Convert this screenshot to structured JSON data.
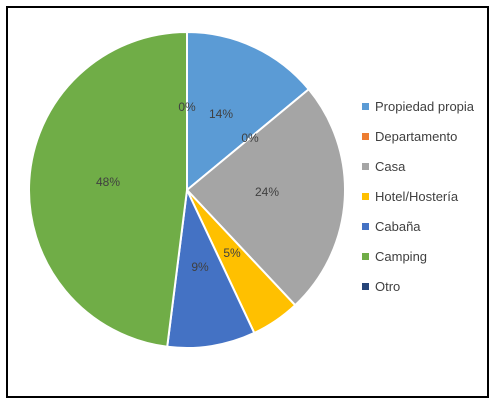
{
  "chart_data": {
    "type": "pie",
    "title": "",
    "legend_position": "right",
    "start_angle_deg": 0,
    "direction": "clockwise",
    "slices": [
      {
        "label": "Propiedad propia",
        "value": 14,
        "display": "14%",
        "color": "#5B9BD5"
      },
      {
        "label": "Departamento",
        "value": 0,
        "display": "0%",
        "color": "#ED7D31"
      },
      {
        "label": "Casa",
        "value": 24,
        "display": "24%",
        "color": "#A5A5A5"
      },
      {
        "label": "Hotel/Hostería",
        "value": 5,
        "display": "5%",
        "color": "#FFC000"
      },
      {
        "label": "Cabaña",
        "value": 9,
        "display": "9%",
        "color": "#4472C4"
      },
      {
        "label": "Camping",
        "value": 48,
        "display": "48%",
        "color": "#70AD47"
      },
      {
        "label": "Otro",
        "value": 0,
        "display": "0%",
        "color": "#264478"
      }
    ]
  }
}
